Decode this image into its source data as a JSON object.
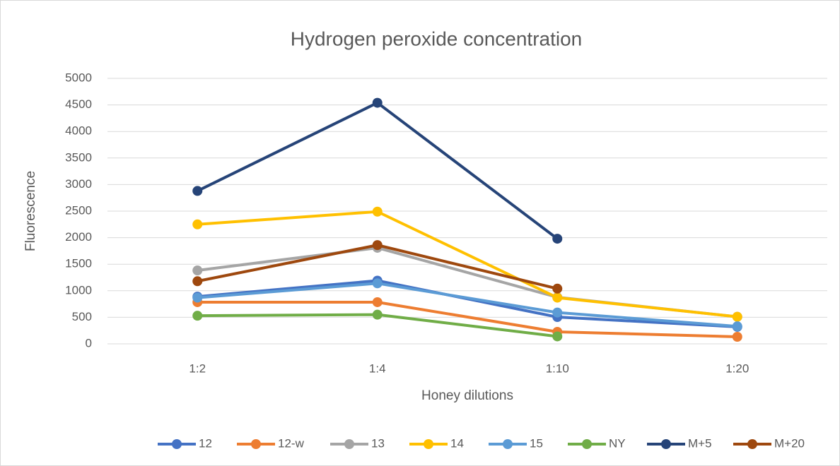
{
  "chart_data": {
    "type": "line",
    "title": "Hydrogen peroxide concentration",
    "x_label": "Honey dilutions",
    "y_label": "Fluorescence",
    "categories": [
      "1:2",
      "1:4",
      "1:10",
      "1:20"
    ],
    "series": [
      {
        "name": "12",
        "color": "#4472c4",
        "values": [
          890,
          1190,
          505,
          320
        ]
      },
      {
        "name": "12-w",
        "color": "#ed7d31",
        "values": [
          785,
          785,
          226,
          133
        ]
      },
      {
        "name": "13",
        "color": "#a5a5a5",
        "values": [
          1383,
          1809,
          878,
          510
        ]
      },
      {
        "name": "14",
        "color": "#ffc000",
        "values": [
          2250,
          2490,
          870,
          510
        ]
      },
      {
        "name": "15",
        "color": "#5b9bd5",
        "values": [
          870,
          1140,
          590,
          330
        ]
      },
      {
        "name": "NY",
        "color": "#70ad47",
        "values": [
          530,
          550,
          140,
          null
        ]
      },
      {
        "name": "M+5",
        "color": "#264478",
        "values": [
          2880,
          4540,
          1980,
          null
        ]
      },
      {
        "name": "M+20",
        "color": "#9e480e",
        "values": [
          1180,
          1860,
          1040,
          null
        ]
      }
    ],
    "ylim": [
      0,
      5000
    ],
    "yticks": [
      0,
      500,
      1000,
      1500,
      2000,
      2500,
      3000,
      3500,
      4000,
      4500,
      5000
    ],
    "grid": true,
    "legend": "bottom"
  }
}
